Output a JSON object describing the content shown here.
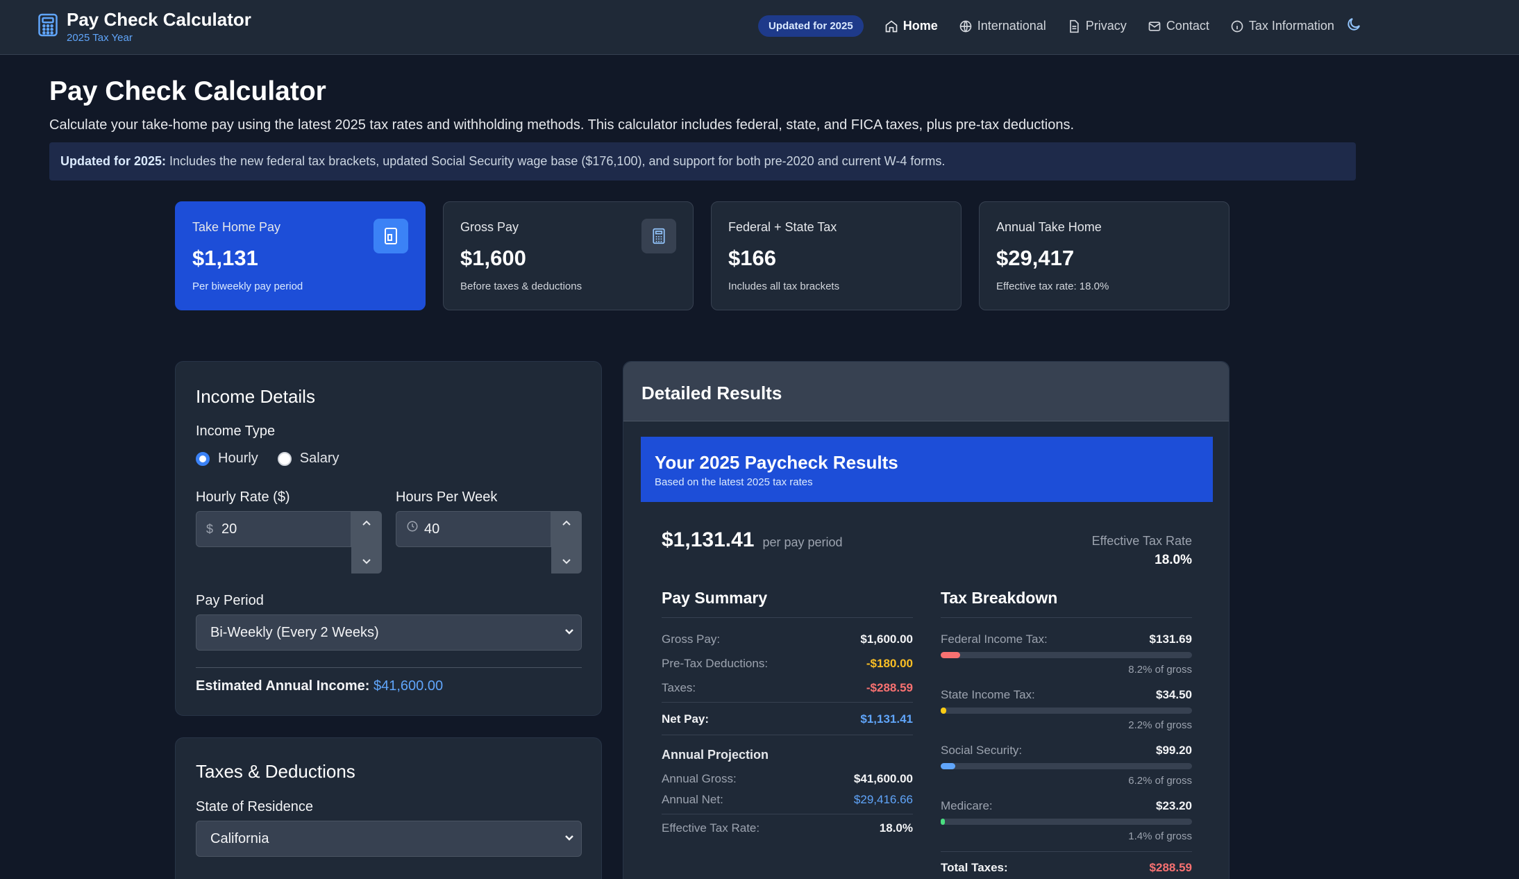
{
  "header": {
    "title": "Pay Check Calculator",
    "subtitle": "2025 Tax Year",
    "badge": "Updated for 2025",
    "nav": [
      {
        "label": "Home",
        "icon": "home-icon"
      },
      {
        "label": "International",
        "icon": "globe-icon"
      },
      {
        "label": "Privacy",
        "icon": "document-icon"
      },
      {
        "label": "Contact",
        "icon": "mail-icon"
      },
      {
        "label": "Tax Information",
        "icon": "info-icon"
      }
    ]
  },
  "page": {
    "title": "Pay Check Calculator",
    "description": "Calculate your take-home pay using the latest 2025 tax rates and withholding methods. This calculator includes federal, state, and FICA taxes, plus pre-tax deductions.",
    "notice_bold": "Updated for 2025:",
    "notice_text": " Includes the new federal tax brackets, updated Social Security wage base ($176,100), and support for both pre-2020 and current W-4 forms."
  },
  "stats": [
    {
      "label": "Take Home Pay",
      "value": "$1,131",
      "note": "Per biweekly pay period"
    },
    {
      "label": "Gross Pay",
      "value": "$1,600",
      "note": "Before taxes & deductions"
    },
    {
      "label": "Federal + State Tax",
      "value": "$166",
      "note": "Includes all tax brackets"
    },
    {
      "label": "Annual Take Home",
      "value": "$29,417",
      "note": "Effective tax rate: 18.0%"
    }
  ],
  "income": {
    "title": "Income Details",
    "type_label": "Income Type",
    "type_options": [
      "Hourly",
      "Salary"
    ],
    "selected_type": "Hourly",
    "rate_label": "Hourly Rate ($)",
    "rate_prefix": "$",
    "rate_value": "20",
    "hours_label": "Hours Per Week",
    "hours_value": "40",
    "period_label": "Pay Period",
    "period_value": "Bi-Weekly (Every 2 Weeks)",
    "annual_label": "Estimated Annual Income:",
    "annual_value": "$41,600.00"
  },
  "taxes": {
    "title": "Taxes & Deductions",
    "state_label": "State of Residence",
    "state_value": "California"
  },
  "results": {
    "title": "Detailed Results",
    "banner_title": "Your 2025 Paycheck Results",
    "banner_sub": "Based on the latest 2025 tax rates",
    "net": "$1,131.41",
    "net_suffix": "per pay period",
    "eff_label": "Effective Tax Rate",
    "eff_value": "18.0%",
    "summary_title": "Pay Summary",
    "summary": [
      {
        "label": "Gross Pay:",
        "value": "$1,600.00"
      },
      {
        "label": "Pre-Tax Deductions:",
        "value": "-$180.00"
      },
      {
        "label": "Taxes:",
        "value": "-$288.59"
      }
    ],
    "net_pay_label": "Net Pay:",
    "net_pay_value": "$1,131.41",
    "annual_title": "Annual Projection",
    "annual": [
      {
        "label": "Annual Gross:",
        "value": "$41,600.00"
      },
      {
        "label": "Annual Net:",
        "value": "$29,416.66"
      }
    ],
    "eff_row_label": "Effective Tax Rate:",
    "eff_row_value": "18.0%",
    "breakdown_title": "Tax Breakdown",
    "breakdown": [
      {
        "label": "Federal Income Tax:",
        "value": "$131.69",
        "pct": "8.2% of gross",
        "fraction": 0.082,
        "color": "#f87171"
      },
      {
        "label": "State Income Tax:",
        "value": "$34.50",
        "pct": "2.2% of gross",
        "fraction": 0.022,
        "color": "#facc15"
      },
      {
        "label": "Social Security:",
        "value": "$99.20",
        "pct": "6.2% of gross",
        "fraction": 0.062,
        "color": "#60a5fa"
      },
      {
        "label": "Medicare:",
        "value": "$23.20",
        "pct": "1.4% of gross",
        "fraction": 0.014,
        "color": "#4ade80"
      }
    ],
    "total_label": "Total Taxes:",
    "total_value": "$288.59"
  },
  "colors": {
    "accent": "#1d4ed8",
    "positive": "#60a5fa",
    "warning": "#fbbf24",
    "negative": "#f87171"
  }
}
